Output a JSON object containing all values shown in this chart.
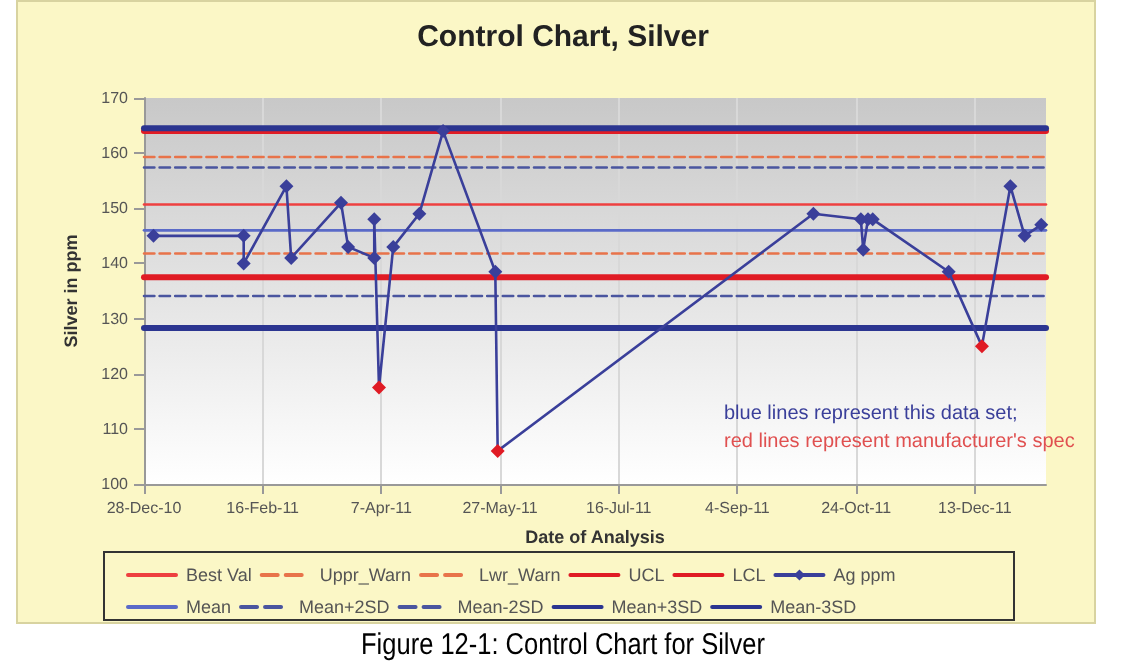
{
  "chart_data": {
    "type": "line",
    "title": "Control Chart, Silver",
    "xlabel": "Date of Analysis",
    "ylabel": "Silver in ppm",
    "xlim": [
      "2010-12-28",
      "2012-01-12"
    ],
    "xticks": [
      {
        "value": "2010-12-28",
        "label": "28-Dec-10"
      },
      {
        "value": "2011-02-16",
        "label": "16-Feb-11"
      },
      {
        "value": "2011-04-07",
        "label": "7-Apr-11"
      },
      {
        "value": "2011-05-27",
        "label": "27-May-11"
      },
      {
        "value": "2011-07-16",
        "label": "16-Jul-11"
      },
      {
        "value": "2011-09-04",
        "label": "4-Sep-11"
      },
      {
        "value": "2011-10-24",
        "label": "24-Oct-11"
      },
      {
        "value": "2011-12-13",
        "label": "13-Dec-11"
      }
    ],
    "ylim": [
      100,
      170
    ],
    "yticks": [
      100,
      110,
      120,
      130,
      140,
      150,
      160,
      170
    ],
    "grid": "x",
    "legend": "bottom",
    "annotations": [
      "blue lines represent this data set;",
      "red lines represent manufacturer's spec",
      "Figure 12-1: Control Chart for Silver"
    ],
    "series": [
      {
        "name": "Best Val",
        "color": "#ee4040",
        "line_style": "solid",
        "marker": "none",
        "x": [
          "2010-12-28",
          "2012-01-12"
        ],
        "values": [
          150.7,
          150.7
        ]
      },
      {
        "name": "Uppr_Warn",
        "color": "#e8734a",
        "line_style": "dashed",
        "marker": "none",
        "x": [
          "2010-12-28",
          "2012-01-12"
        ],
        "values": [
          159.3,
          159.3
        ]
      },
      {
        "name": "Lwr_Warn",
        "color": "#e8734a",
        "line_style": "dashed",
        "marker": "none",
        "x": [
          "2010-12-28",
          "2012-01-12"
        ],
        "values": [
          141.8,
          141.8
        ]
      },
      {
        "name": "UCL",
        "color": "#e01b24",
        "line_style": "solid",
        "marker": "none",
        "x": [
          "2010-12-28",
          "2012-01-12"
        ],
        "values": [
          164,
          164
        ]
      },
      {
        "name": "LCL",
        "color": "#e01b24",
        "line_style": "solid",
        "marker": "none",
        "x": [
          "2010-12-28",
          "2012-01-12"
        ],
        "values": [
          137.5,
          137.5
        ]
      },
      {
        "name": "Ag ppm",
        "color": "#3a3f9a",
        "marker": "diamond",
        "line_style": "solid",
        "x": [
          "2011-01-01",
          "2011-02-08",
          "2011-02-08",
          "2011-02-26",
          "2011-02-28",
          "2011-03-21",
          "2011-03-24",
          "2011-04-04",
          "2011-04-04",
          "2011-04-06",
          "2011-04-12",
          "2011-04-23",
          "2011-05-03",
          "2011-05-25",
          "2011-05-26",
          "2011-10-06",
          "2011-10-26",
          "2011-10-27",
          "2011-10-29",
          "2011-10-31",
          "2011-12-02",
          "2011-12-16",
          "2011-12-28",
          "2012-01-03",
          "2012-01-10"
        ],
        "values": [
          145,
          145,
          140,
          154,
          141,
          151,
          143,
          141,
          148,
          117.5,
          143,
          149,
          164,
          138.5,
          106,
          149,
          148,
          142.5,
          148,
          148,
          138.5,
          125,
          154,
          145,
          147
        ],
        "colors": [
          "#3a3f9a",
          "#3a3f9a",
          "#3a3f9a",
          "#3a3f9a",
          "#3a3f9a",
          "#3a3f9a",
          "#3a3f9a",
          "#3a3f9a",
          "#3a3f9a",
          "#e01b24",
          "#3a3f9a",
          "#3a3f9a",
          "#3a3f9a",
          "#3a3f9a",
          "#e01b24",
          "#3a3f9a",
          "#3a3f9a",
          "#3a3f9a",
          "#3a3f9a",
          "#3a3f9a",
          "#3a3f9a",
          "#e01b24",
          "#3a3f9a",
          "#3a3f9a",
          "#3a3f9a"
        ]
      },
      {
        "name": "Mean",
        "color": "#5a6ac8",
        "line_style": "solid",
        "marker": "none",
        "x": [
          "2010-12-28",
          "2012-01-12"
        ],
        "values": [
          146,
          146
        ]
      },
      {
        "name": "Mean+2SD",
        "color": "#4a559f",
        "line_style": "dashed",
        "marker": "none",
        "x": [
          "2010-12-28",
          "2012-01-12"
        ],
        "values": [
          157.4,
          157.4
        ]
      },
      {
        "name": "Mean-2SD",
        "color": "#4a559f",
        "line_style": "dashed",
        "marker": "none",
        "x": [
          "2010-12-28",
          "2012-01-12"
        ],
        "values": [
          134.1,
          134.1
        ]
      },
      {
        "name": "Mean+3SD",
        "color": "#2b3590",
        "line_style": "solid",
        "marker": "none",
        "x": [
          "2010-12-28",
          "2012-01-12"
        ],
        "values": [
          164.5,
          164.5
        ]
      },
      {
        "name": "Mean-3SD",
        "color": "#2b3590",
        "line_style": "solid",
        "marker": "none",
        "x": [
          "2010-12-28",
          "2012-01-12"
        ],
        "values": [
          128.3,
          128.3
        ]
      }
    ]
  }
}
